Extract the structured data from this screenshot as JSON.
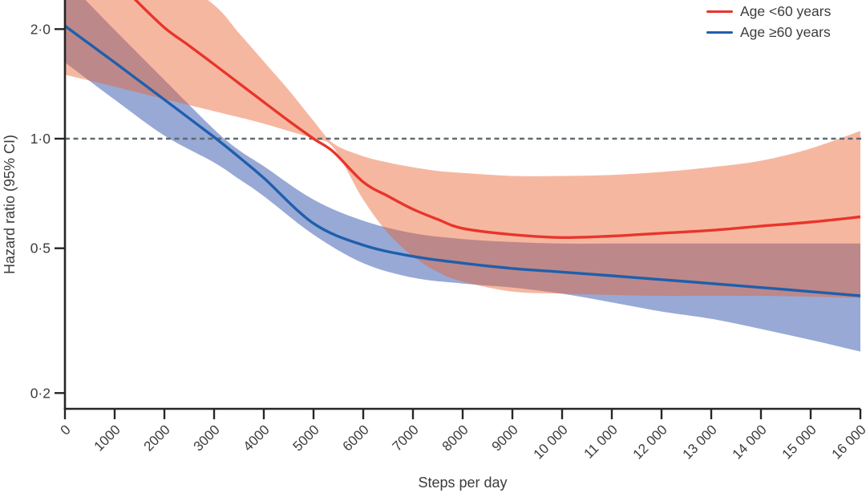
{
  "chart_data": {
    "type": "line",
    "title": "",
    "xlabel": "Steps per day",
    "ylabel": "Hazard ratio (95% CI)",
    "y_scale": "log",
    "grid": false,
    "xlim": [
      0,
      16000
    ],
    "ylim_visible": [
      0.18,
      2.42
    ],
    "x_ticks": [
      0,
      1000,
      2000,
      3000,
      4000,
      5000,
      6000,
      7000,
      8000,
      9000,
      10000,
      11000,
      12000,
      13000,
      14000,
      15000,
      16000
    ],
    "x_tick_labels": [
      "0",
      "1000",
      "2000",
      "3000",
      "4000",
      "5000",
      "6000",
      "7000",
      "8000",
      "9000",
      "10 000",
      "11 000",
      "12 000",
      "13 000",
      "14 000",
      "15 000",
      "16 000"
    ],
    "y_ticks": [
      2.0,
      1.0,
      0.5,
      0.2
    ],
    "y_tick_labels": [
      "2·0",
      "1·0",
      "0·5",
      "0·2"
    ],
    "reference_line": {
      "value": 1.0,
      "style": "dashed",
      "color": "#5f6a70"
    },
    "legend": [
      {
        "label": "Age <60 years",
        "color": "#e8352b"
      },
      {
        "label": "Age ≥60 years",
        "color": "#1e5fac"
      }
    ],
    "series": [
      {
        "name": "Age <60 years",
        "line_color": "#e8352b",
        "band_color": "rgba(236,95,45,0.45)",
        "x": [
          1400,
          2000,
          2500,
          3000,
          3500,
          4000,
          4500,
          5000,
          5400,
          6000,
          6500,
          7000,
          7500,
          8000,
          9000,
          10000,
          11000,
          12000,
          13000,
          14000,
          15000,
          16000
        ],
        "hr": [
          2.42,
          2.02,
          1.8,
          1.6,
          1.42,
          1.26,
          1.12,
          1.0,
          0.92,
          0.76,
          0.695,
          0.64,
          0.6,
          0.567,
          0.545,
          0.535,
          0.54,
          0.55,
          0.56,
          0.575,
          0.59,
          0.61
        ],
        "band_x": [
          0,
          1000,
          2000,
          3000,
          3500,
          4000,
          4500,
          5000,
          5400,
          6000,
          6500,
          7000,
          7500,
          8000,
          9000,
          10000,
          11000,
          12000,
          13000,
          14000,
          15000,
          16000
        ],
        "ci_upper": [
          4.2,
          3.5,
          2.9,
          2.33,
          1.95,
          1.63,
          1.36,
          1.12,
          0.97,
          0.895,
          0.86,
          0.835,
          0.815,
          0.805,
          0.79,
          0.79,
          0.795,
          0.81,
          0.835,
          0.87,
          0.94,
          1.05
        ],
        "ci_lower": [
          1.5,
          1.39,
          1.285,
          1.19,
          1.145,
          1.1,
          1.05,
          1.0,
          0.945,
          0.68,
          0.55,
          0.475,
          0.43,
          0.405,
          0.38,
          0.375,
          0.372,
          0.37,
          0.37,
          0.37,
          0.368,
          0.365
        ]
      },
      {
        "name": "Age ≥60 years",
        "line_color": "#1e5fac",
        "band_color": "rgba(40,75,170,0.48)",
        "x": [
          0,
          1000,
          2000,
          3000,
          3500,
          4000,
          5000,
          6000,
          7000,
          8000,
          9000,
          10000,
          11000,
          12000,
          13000,
          14000,
          15000,
          16000
        ],
        "hr": [
          2.04,
          1.62,
          1.28,
          1.01,
          0.89,
          0.78,
          0.585,
          0.51,
          0.475,
          0.455,
          0.44,
          0.43,
          0.42,
          0.41,
          0.4,
          0.39,
          0.38,
          0.37
        ],
        "band_x": [
          0,
          1000,
          2000,
          3000,
          3500,
          4000,
          5000,
          6000,
          7000,
          8000,
          9000,
          10000,
          11000,
          12000,
          13000,
          14000,
          15000,
          16000
        ],
        "ci_upper": [
          2.75,
          1.99,
          1.45,
          1.06,
          0.93,
          0.84,
          0.68,
          0.595,
          0.55,
          0.53,
          0.52,
          0.515,
          0.515,
          0.515,
          0.515,
          0.515,
          0.515,
          0.515
        ],
        "ci_lower": [
          1.62,
          1.28,
          1.02,
          0.86,
          0.775,
          0.695,
          0.545,
          0.455,
          0.415,
          0.4,
          0.39,
          0.375,
          0.355,
          0.335,
          0.32,
          0.3,
          0.28,
          0.26
        ]
      }
    ]
  }
}
